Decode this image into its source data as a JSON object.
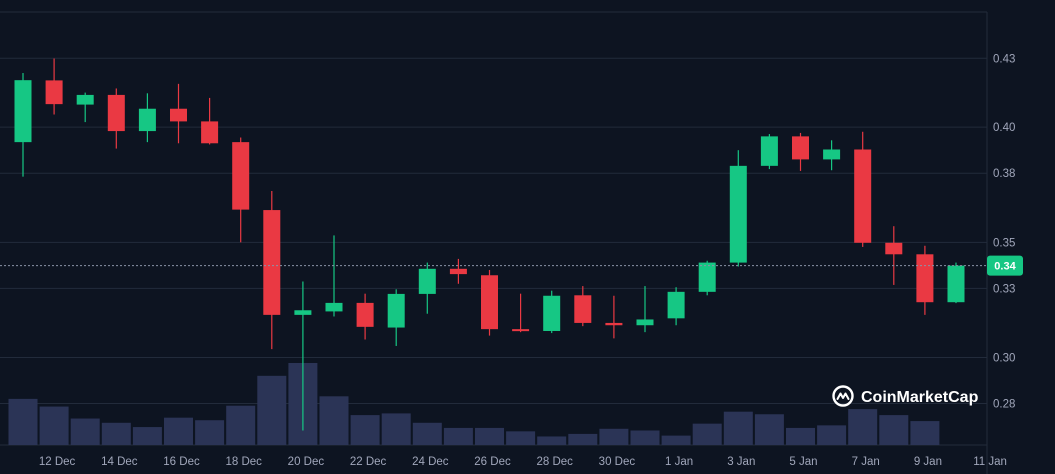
{
  "chart_data": {
    "type": "candlestick",
    "title": "",
    "xlabel": "",
    "ylabel": "",
    "grid": true,
    "ylim": [
      0.262,
      0.45
    ],
    "y_ticks": [
      "0.43",
      "0.40",
      "0.38",
      "0.35",
      "0.33",
      "0.30",
      "0.28"
    ],
    "y_tick_values": [
      0.4299,
      0.4,
      0.38,
      0.35,
      0.33,
      0.3,
      0.28
    ],
    "x_ticks": [
      "12 Dec",
      "14 Dec",
      "16 Dec",
      "18 Dec",
      "20 Dec",
      "22 Dec",
      "24 Dec",
      "26 Dec",
      "28 Dec",
      "30 Dec",
      "1 Jan",
      "3 Jan",
      "5 Jan",
      "7 Jan",
      "9 Jan",
      "11 Jan"
    ],
    "x_tick_index": [
      1,
      3,
      5,
      7,
      9,
      11,
      13,
      15,
      17,
      19,
      21,
      23,
      25,
      27,
      29,
      31
    ],
    "current_price": "0.34",
    "current_price_value": 0.3399,
    "up_color": "#16c784",
    "down_color": "#ea3943",
    "volume_color": "#2b3456",
    "candles": [
      {
        "date": "11 Dec",
        "open": 0.3935,
        "high": 0.4235,
        "low": 0.3785,
        "close": 0.4204,
        "volume": 54
      },
      {
        "date": "12 Dec",
        "open": 0.4203,
        "high": 0.4298,
        "low": 0.4055,
        "close": 0.41,
        "volume": 45
      },
      {
        "date": "13 Dec",
        "open": 0.4098,
        "high": 0.415,
        "low": 0.4022,
        "close": 0.414,
        "volume": 31
      },
      {
        "date": "14 Dec",
        "open": 0.414,
        "high": 0.4168,
        "low": 0.3907,
        "close": 0.3983,
        "volume": 26
      },
      {
        "date": "15 Dec",
        "open": 0.3983,
        "high": 0.4147,
        "low": 0.3935,
        "close": 0.408,
        "volume": 21
      },
      {
        "date": "16 Dec",
        "open": 0.408,
        "high": 0.4188,
        "low": 0.393,
        "close": 0.4025,
        "volume": 32
      },
      {
        "date": "17 Dec",
        "open": 0.4025,
        "high": 0.4127,
        "low": 0.3925,
        "close": 0.393,
        "volume": 29
      },
      {
        "date": "18 Dec",
        "open": 0.3935,
        "high": 0.3955,
        "low": 0.35,
        "close": 0.3642,
        "volume": 46
      },
      {
        "date": "19 Dec",
        "open": 0.364,
        "high": 0.3723,
        "low": 0.3036,
        "close": 0.3185,
        "volume": 81
      },
      {
        "date": "20 Dec",
        "open": 0.3185,
        "high": 0.333,
        "low": 0.2683,
        "close": 0.3205,
        "volume": 96
      },
      {
        "date": "21 Dec",
        "open": 0.32,
        "high": 0.353,
        "low": 0.3178,
        "close": 0.3237,
        "volume": 57
      },
      {
        "date": "22 Dec",
        "open": 0.3237,
        "high": 0.3277,
        "low": 0.3078,
        "close": 0.3133,
        "volume": 35
      },
      {
        "date": "23 Dec",
        "open": 0.313,
        "high": 0.3296,
        "low": 0.305,
        "close": 0.3276,
        "volume": 37
      },
      {
        "date": "24 Dec",
        "open": 0.3276,
        "high": 0.3412,
        "low": 0.319,
        "close": 0.3385,
        "volume": 26
      },
      {
        "date": "25 Dec",
        "open": 0.3385,
        "high": 0.3428,
        "low": 0.332,
        "close": 0.3362,
        "volume": 20
      },
      {
        "date": "26 Dec",
        "open": 0.3357,
        "high": 0.338,
        "low": 0.3095,
        "close": 0.3123,
        "volume": 20
      },
      {
        "date": "27 Dec",
        "open": 0.3123,
        "high": 0.3277,
        "low": 0.311,
        "close": 0.3115,
        "volume": 16
      },
      {
        "date": "28 Dec",
        "open": 0.3115,
        "high": 0.329,
        "low": 0.3106,
        "close": 0.3268,
        "volume": 10
      },
      {
        "date": "29 Dec",
        "open": 0.327,
        "high": 0.331,
        "low": 0.3136,
        "close": 0.315,
        "volume": 13
      },
      {
        "date": "30 Dec",
        "open": 0.315,
        "high": 0.3268,
        "low": 0.3083,
        "close": 0.314,
        "volume": 19
      },
      {
        "date": "31 Dec",
        "open": 0.314,
        "high": 0.331,
        "low": 0.311,
        "close": 0.3165,
        "volume": 17
      },
      {
        "date": "1 Jan",
        "open": 0.317,
        "high": 0.3305,
        "low": 0.314,
        "close": 0.3285,
        "volume": 11
      },
      {
        "date": "2 Jan",
        "open": 0.3285,
        "high": 0.342,
        "low": 0.327,
        "close": 0.3412,
        "volume": 25
      },
      {
        "date": "3 Jan",
        "open": 0.3412,
        "high": 0.39,
        "low": 0.3395,
        "close": 0.3832,
        "volume": 39
      },
      {
        "date": "4 Jan",
        "open": 0.3832,
        "high": 0.397,
        "low": 0.3818,
        "close": 0.396,
        "volume": 36
      },
      {
        "date": "5 Jan",
        "open": 0.396,
        "high": 0.3975,
        "low": 0.381,
        "close": 0.386,
        "volume": 20
      },
      {
        "date": "6 Jan",
        "open": 0.386,
        "high": 0.3943,
        "low": 0.3813,
        "close": 0.3903,
        "volume": 23
      },
      {
        "date": "7 Jan",
        "open": 0.3903,
        "high": 0.398,
        "low": 0.348,
        "close": 0.3498,
        "volume": 42
      },
      {
        "date": "8 Jan",
        "open": 0.3498,
        "high": 0.357,
        "low": 0.3315,
        "close": 0.3448,
        "volume": 35
      },
      {
        "date": "9 Jan",
        "open": 0.3448,
        "high": 0.3485,
        "low": 0.3185,
        "close": 0.324,
        "volume": 28
      },
      {
        "date": "10 Jan",
        "open": 0.324,
        "high": 0.3412,
        "low": 0.3236,
        "close": 0.3399,
        "volume": 0
      }
    ]
  },
  "brand": {
    "name": "CoinMarketCap",
    "icon": "coinmarketcap-logo-icon"
  }
}
